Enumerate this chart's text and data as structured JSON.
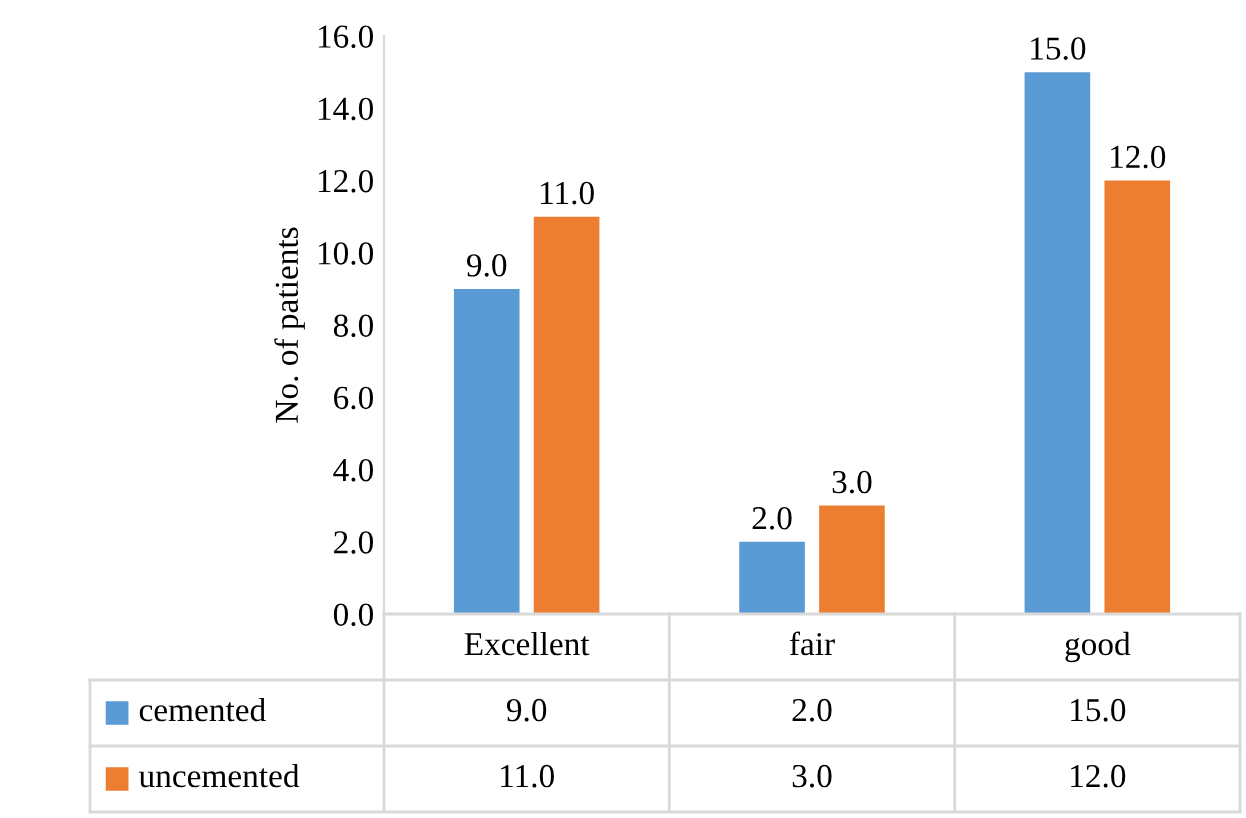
{
  "chart_data": {
    "type": "bar",
    "ylabel": "No. of patients",
    "categories": [
      "Excellent",
      "fair",
      "good"
    ],
    "series": [
      {
        "name": "cemented",
        "color": "#5b9bd5",
        "values": [
          9,
          2,
          15
        ],
        "value_labels": [
          "9.0",
          "2.0",
          "15.0"
        ]
      },
      {
        "name": "uncemented",
        "color": "#ed7d31",
        "values": [
          11,
          3,
          12
        ],
        "value_labels": [
          "11.0",
          "3.0",
          "12.0"
        ]
      }
    ],
    "ylim": [
      0,
      16
    ],
    "yticks": [
      {
        "value": 0,
        "label": "0.0"
      },
      {
        "value": 2,
        "label": "2.0"
      },
      {
        "value": 4,
        "label": "4.0"
      },
      {
        "value": 6,
        "label": "6.0"
      },
      {
        "value": 8,
        "label": "8.0"
      },
      {
        "value": 10,
        "label": "10.0"
      },
      {
        "value": 12,
        "label": "12.0"
      },
      {
        "value": 14,
        "label": "14.0"
      },
      {
        "value": 16,
        "label": "16.0"
      }
    ],
    "grid": false,
    "legend": "bottom"
  }
}
